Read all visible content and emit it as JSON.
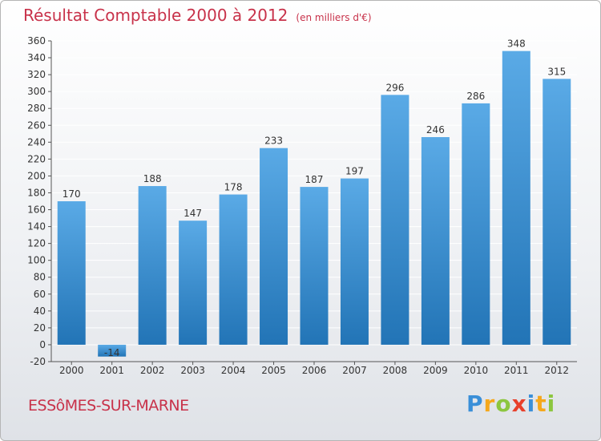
{
  "header": {
    "title": "Résultat Comptable 2000 à 2012",
    "subtitle": "(en milliers d'€)"
  },
  "footer": {
    "commune": "ESSôMES-SUR-MARNE",
    "logo_letters": [
      {
        "char": "P",
        "color": "#3a8fd8"
      },
      {
        "char": "r",
        "color": "#f5a81c"
      },
      {
        "char": "o",
        "color": "#8cc63f"
      },
      {
        "char": "x",
        "color": "#e8402b"
      },
      {
        "char": "i",
        "color": "#3a8fd8"
      },
      {
        "char": "t",
        "color": "#f5a81c"
      },
      {
        "char": "i",
        "color": "#8cc63f"
      }
    ]
  },
  "colors": {
    "bar_light": "#5aaae6",
    "bar_dark": "#2274b6",
    "accent": "#c8324a",
    "grid": "#ffffff"
  },
  "chart_data": {
    "type": "bar",
    "title": "Résultat Comptable 2000 à 2012",
    "subtitle": "(en milliers d'€)",
    "categories": [
      "2000",
      "2001",
      "2002",
      "2003",
      "2004",
      "2005",
      "2006",
      "2007",
      "2008",
      "2009",
      "2010",
      "2011",
      "2012"
    ],
    "values": [
      170,
      -14,
      188,
      147,
      178,
      233,
      187,
      197,
      296,
      246,
      286,
      348,
      315
    ],
    "value_labels": [
      "170",
      "-14",
      "188",
      "147",
      "178",
      "233",
      "187",
      "197",
      "296",
      "246",
      "286",
      "348",
      "315"
    ],
    "ylim": [
      -20,
      360
    ],
    "yticks": [
      -20,
      0,
      20,
      40,
      60,
      80,
      100,
      120,
      140,
      160,
      180,
      200,
      220,
      240,
      260,
      280,
      300,
      320,
      340,
      360
    ],
    "grid": true,
    "legend": "none"
  }
}
